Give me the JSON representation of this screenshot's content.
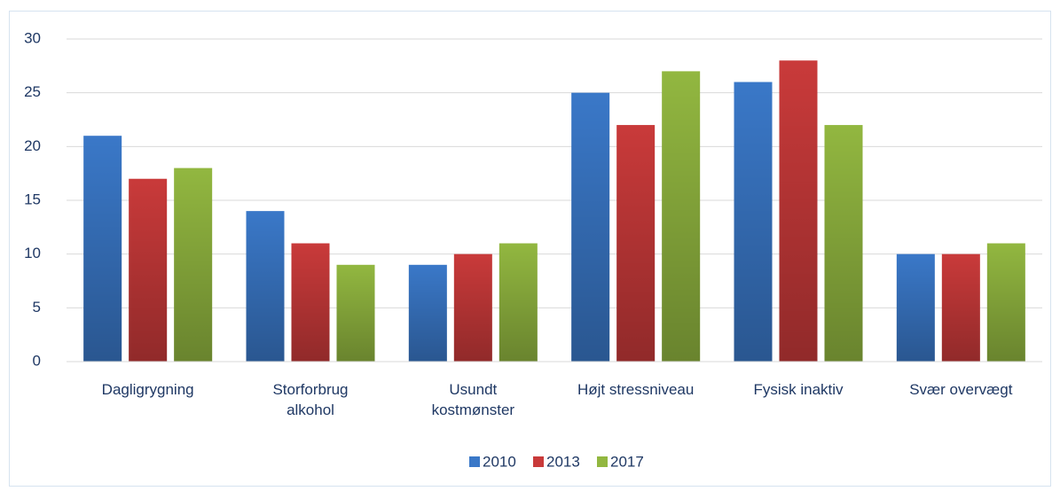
{
  "chart_data": {
    "type": "bar",
    "categories": [
      "Dagligrygning",
      "Storforbrug\nalkohol",
      "Usundt\nkostmønster",
      "Højt stressniveau",
      "Fysisk inaktiv",
      "Svær overvægt"
    ],
    "series": [
      {
        "name": "2010",
        "color": "#3a78c8",
        "values": [
          21,
          14,
          9,
          25,
          26,
          10
        ]
      },
      {
        "name": "2013",
        "color": "#c93a3a",
        "values": [
          17,
          11,
          10,
          22,
          28,
          10
        ]
      },
      {
        "name": "2017",
        "color": "#92b740",
        "values": [
          18,
          9,
          11,
          27,
          22,
          11
        ]
      }
    ],
    "ylim": [
      0,
      30
    ],
    "yticks": [
      0,
      5,
      10,
      15,
      20,
      25,
      30
    ],
    "grid": true,
    "legend": "bottom"
  }
}
